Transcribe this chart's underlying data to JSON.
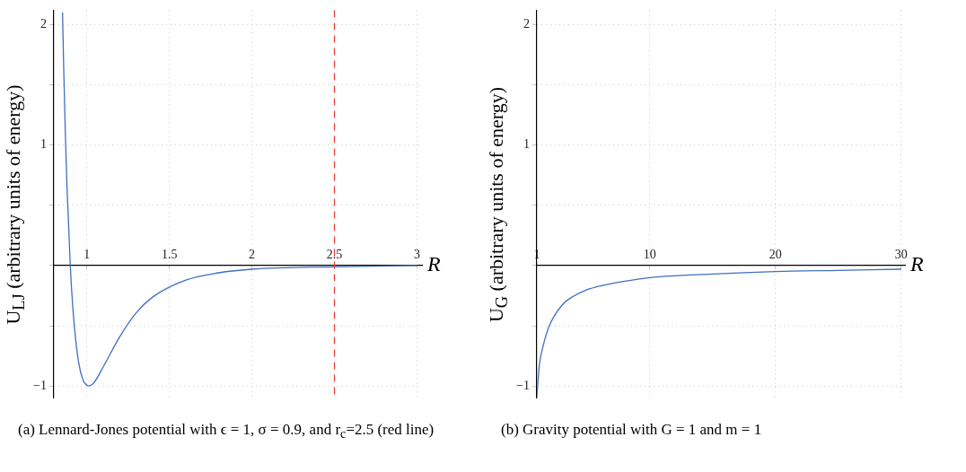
{
  "chart_data": [
    {
      "type": "line",
      "title": "(a) Lennard-Jones potential with ϵ = 1, σ = 0.9, and r$_{c}$=2.5 (red line)",
      "xlabel": "R",
      "ylabel": "U$_{LJ}$ (arbitrary units of energy)",
      "series": [
        {
          "color": "#3e6fc1",
          "x": [
            0.853,
            0.86,
            0.87,
            0.88,
            0.9,
            0.92,
            0.95,
            0.98,
            0.99,
            1.01,
            1.03,
            1.05,
            1.1,
            1.2,
            1.3,
            1.4,
            1.6,
            1.8,
            2,
            2.5,
            3
          ],
          "values": [
            2.1,
            1.65,
            1.1,
            0.66,
            0,
            -0.43,
            -0.8,
            -0.96,
            -0.98,
            -1,
            -0.99,
            -0.96,
            -0.84,
            -0.59,
            -0.39,
            -0.26,
            -0.12,
            -0.06,
            -0.03,
            -0.01,
            0
          ]
        }
      ],
      "xlim": [
        0.8,
        3.03
      ],
      "xticks": [
        1,
        1.5,
        2,
        2.5,
        3
      ],
      "ylim": [
        -1.1,
        2.12
      ],
      "yticks": [
        -1,
        {
          "value": -0.5,
          "label": null
        },
        {
          "value": 0,
          "label": null
        },
        {
          "value": 0.5,
          "label": null
        },
        1,
        {
          "value": 1.5,
          "label": null
        },
        2
      ],
      "ref_lines": [
        {
          "axis": "x",
          "value": 2.5,
          "color": "#e8413c",
          "line_style": "dashed"
        }
      ],
      "grid": true,
      "legend": false,
      "marker": "none",
      "line_style": "solid"
    },
    {
      "type": "line",
      "title": "(b) Gravity potential with G = 1 and m = 1",
      "xlabel": "R",
      "ylabel": "U$_{G}$ (arbitrary units of energy)",
      "series": [
        {
          "color": "#3e6fc1",
          "x": [
            1,
            1.2,
            1.5,
            2,
            3,
            4,
            5,
            6,
            8,
            10,
            15,
            20,
            25,
            30
          ],
          "values": [
            -1.1,
            -0.83,
            -0.67,
            -0.5,
            -0.33,
            -0.25,
            -0.2,
            -0.17,
            -0.13,
            -0.1,
            -0.07,
            -0.05,
            -0.04,
            -0.03
          ]
        }
      ],
      "xlim": [
        1,
        30.3
      ],
      "xticks": [
        1,
        10,
        20,
        30
      ],
      "ylim": [
        -1.1,
        2.12
      ],
      "yticks": [
        -1,
        {
          "value": -0.5,
          "label": null
        },
        {
          "value": 0,
          "label": null
        },
        {
          "value": 0.5,
          "label": null
        },
        1,
        {
          "value": 1.5,
          "label": null
        },
        2
      ],
      "grid": true,
      "legend": false,
      "marker": "none",
      "line_style": "solid"
    }
  ]
}
